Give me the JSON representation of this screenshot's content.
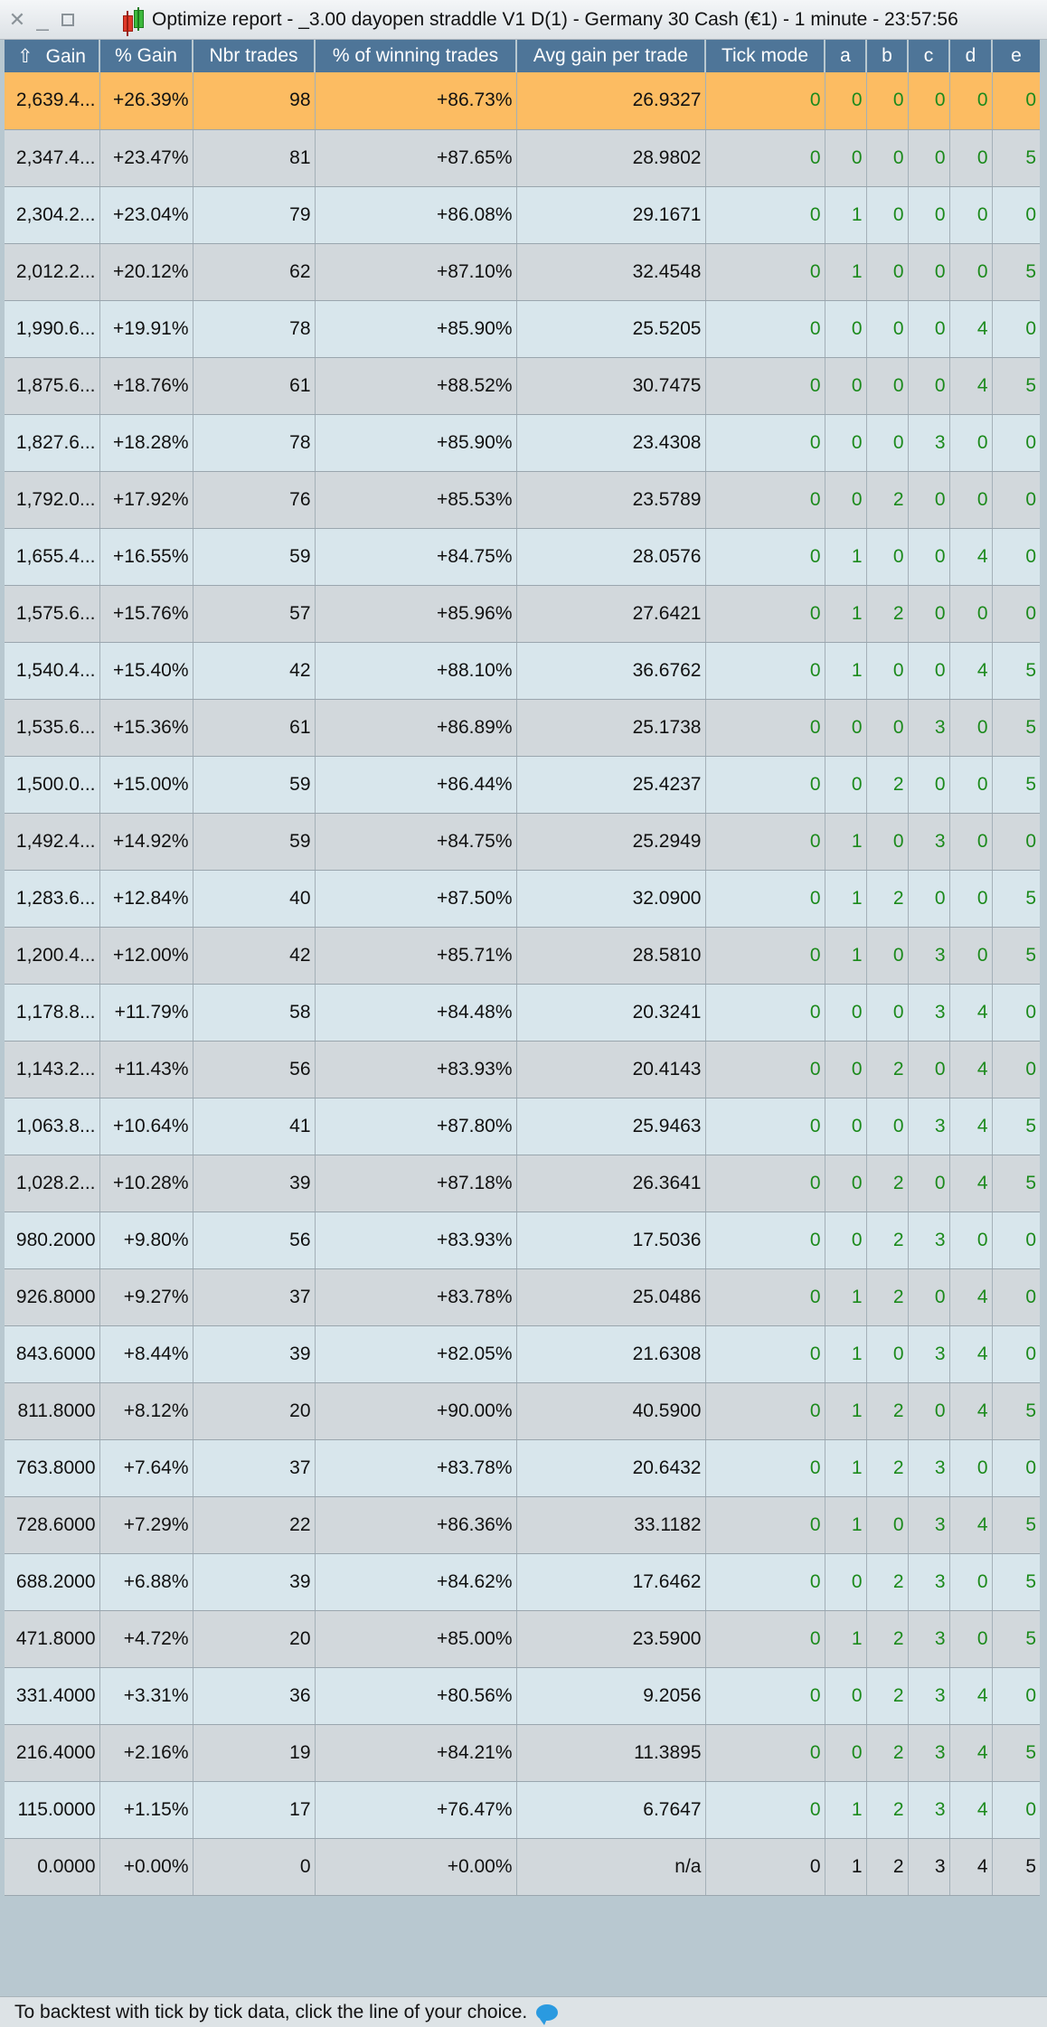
{
  "window": {
    "title": "Optimize report - _3.00 dayopen straddle V1 D(1) - Germany 30 Cash (€1) - 1 minute - 23:57:56"
  },
  "columns": [
    {
      "key": "gain",
      "label": "Gain",
      "sort_icon": "up-arrow-icon",
      "sort": "⇧"
    },
    {
      "key": "pct_gain",
      "label": "% Gain"
    },
    {
      "key": "nbr_trades",
      "label": "Nbr trades"
    },
    {
      "key": "pct_winning",
      "label": "% of winning trades"
    },
    {
      "key": "avg_gain",
      "label": "Avg gain per trade"
    },
    {
      "key": "tick_mode",
      "label": "Tick mode"
    },
    {
      "key": "a",
      "label": "a"
    },
    {
      "key": "b",
      "label": "b"
    },
    {
      "key": "c",
      "label": "c"
    },
    {
      "key": "d",
      "label": "d"
    },
    {
      "key": "e",
      "label": "e"
    }
  ],
  "rows": [
    [
      "2,639.4...",
      "+26.39%",
      "98",
      "+86.73%",
      "26.9327",
      "0",
      "0",
      "0",
      "0",
      "0",
      "0"
    ],
    [
      "2,347.4...",
      "+23.47%",
      "81",
      "+87.65%",
      "28.9802",
      "0",
      "0",
      "0",
      "0",
      "0",
      "5"
    ],
    [
      "2,304.2...",
      "+23.04%",
      "79",
      "+86.08%",
      "29.1671",
      "0",
      "1",
      "0",
      "0",
      "0",
      "0"
    ],
    [
      "2,012.2...",
      "+20.12%",
      "62",
      "+87.10%",
      "32.4548",
      "0",
      "1",
      "0",
      "0",
      "0",
      "5"
    ],
    [
      "1,990.6...",
      "+19.91%",
      "78",
      "+85.90%",
      "25.5205",
      "0",
      "0",
      "0",
      "0",
      "4",
      "0"
    ],
    [
      "1,875.6...",
      "+18.76%",
      "61",
      "+88.52%",
      "30.7475",
      "0",
      "0",
      "0",
      "0",
      "4",
      "5"
    ],
    [
      "1,827.6...",
      "+18.28%",
      "78",
      "+85.90%",
      "23.4308",
      "0",
      "0",
      "0",
      "3",
      "0",
      "0"
    ],
    [
      "1,792.0...",
      "+17.92%",
      "76",
      "+85.53%",
      "23.5789",
      "0",
      "0",
      "2",
      "0",
      "0",
      "0"
    ],
    [
      "1,655.4...",
      "+16.55%",
      "59",
      "+84.75%",
      "28.0576",
      "0",
      "1",
      "0",
      "0",
      "4",
      "0"
    ],
    [
      "1,575.6...",
      "+15.76%",
      "57",
      "+85.96%",
      "27.6421",
      "0",
      "1",
      "2",
      "0",
      "0",
      "0"
    ],
    [
      "1,540.4...",
      "+15.40%",
      "42",
      "+88.10%",
      "36.6762",
      "0",
      "1",
      "0",
      "0",
      "4",
      "5"
    ],
    [
      "1,535.6...",
      "+15.36%",
      "61",
      "+86.89%",
      "25.1738",
      "0",
      "0",
      "0",
      "3",
      "0",
      "5"
    ],
    [
      "1,500.0...",
      "+15.00%",
      "59",
      "+86.44%",
      "25.4237",
      "0",
      "0",
      "2",
      "0",
      "0",
      "5"
    ],
    [
      "1,492.4...",
      "+14.92%",
      "59",
      "+84.75%",
      "25.2949",
      "0",
      "1",
      "0",
      "3",
      "0",
      "0"
    ],
    [
      "1,283.6...",
      "+12.84%",
      "40",
      "+87.50%",
      "32.0900",
      "0",
      "1",
      "2",
      "0",
      "0",
      "5"
    ],
    [
      "1,200.4...",
      "+12.00%",
      "42",
      "+85.71%",
      "28.5810",
      "0",
      "1",
      "0",
      "3",
      "0",
      "5"
    ],
    [
      "1,178.8...",
      "+11.79%",
      "58",
      "+84.48%",
      "20.3241",
      "0",
      "0",
      "0",
      "3",
      "4",
      "0"
    ],
    [
      "1,143.2...",
      "+11.43%",
      "56",
      "+83.93%",
      "20.4143",
      "0",
      "0",
      "2",
      "0",
      "4",
      "0"
    ],
    [
      "1,063.8...",
      "+10.64%",
      "41",
      "+87.80%",
      "25.9463",
      "0",
      "0",
      "0",
      "3",
      "4",
      "5"
    ],
    [
      "1,028.2...",
      "+10.28%",
      "39",
      "+87.18%",
      "26.3641",
      "0",
      "0",
      "2",
      "0",
      "4",
      "5"
    ],
    [
      "980.2000",
      "+9.80%",
      "56",
      "+83.93%",
      "17.5036",
      "0",
      "0",
      "2",
      "3",
      "0",
      "0"
    ],
    [
      "926.8000",
      "+9.27%",
      "37",
      "+83.78%",
      "25.0486",
      "0",
      "1",
      "2",
      "0",
      "4",
      "0"
    ],
    [
      "843.6000",
      "+8.44%",
      "39",
      "+82.05%",
      "21.6308",
      "0",
      "1",
      "0",
      "3",
      "4",
      "0"
    ],
    [
      "811.8000",
      "+8.12%",
      "20",
      "+90.00%",
      "40.5900",
      "0",
      "1",
      "2",
      "0",
      "4",
      "5"
    ],
    [
      "763.8000",
      "+7.64%",
      "37",
      "+83.78%",
      "20.6432",
      "0",
      "1",
      "2",
      "3",
      "0",
      "0"
    ],
    [
      "728.6000",
      "+7.29%",
      "22",
      "+86.36%",
      "33.1182",
      "0",
      "1",
      "0",
      "3",
      "4",
      "5"
    ],
    [
      "688.2000",
      "+6.88%",
      "39",
      "+84.62%",
      "17.6462",
      "0",
      "0",
      "2",
      "3",
      "0",
      "5"
    ],
    [
      "471.8000",
      "+4.72%",
      "20",
      "+85.00%",
      "23.5900",
      "0",
      "1",
      "2",
      "3",
      "0",
      "5"
    ],
    [
      "331.4000",
      "+3.31%",
      "36",
      "+80.56%",
      "9.2056",
      "0",
      "0",
      "2",
      "3",
      "4",
      "0"
    ],
    [
      "216.4000",
      "+2.16%",
      "19",
      "+84.21%",
      "11.3895",
      "0",
      "0",
      "2",
      "3",
      "4",
      "5"
    ],
    [
      "115.0000",
      "+1.15%",
      "17",
      "+76.47%",
      "6.7647",
      "0",
      "1",
      "2",
      "3",
      "4",
      "0"
    ],
    [
      "0.0000",
      "+0.00%",
      "0",
      "+0.00%",
      "n/a",
      "0",
      "1",
      "2",
      "3",
      "4",
      "5"
    ]
  ],
  "selected_row": 0,
  "baseline_row": 31,
  "status": {
    "text": "To backtest with tick by tick data, click the line of your choice.",
    "icon": "chat-bubble-icon"
  },
  "colors": {
    "header_bg": "#4e7598",
    "selected_bg": "#fcbc62",
    "param_text": "#1c8a1c"
  }
}
